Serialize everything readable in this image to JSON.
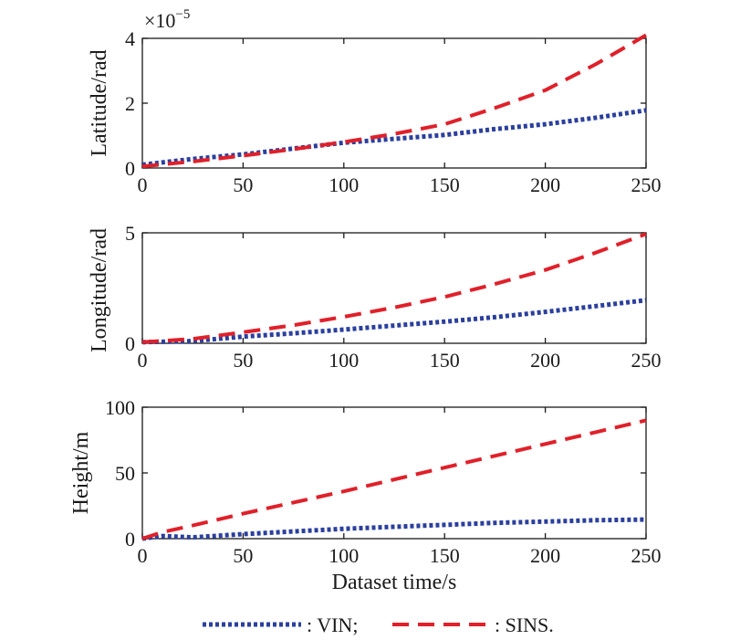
{
  "chart_data": [
    {
      "type": "line",
      "ylabel": "Latitude/rad",
      "exponent_base": "×10",
      "exponent_power": "−5",
      "xlim": [
        0,
        250
      ],
      "ylim": [
        0,
        4
      ],
      "xticks": [
        "0",
        "50",
        "100",
        "150",
        "200",
        "250"
      ],
      "yticks": [
        "0",
        "2",
        "4"
      ],
      "x": [
        0,
        25,
        50,
        75,
        100,
        125,
        150,
        175,
        200,
        225,
        250
      ],
      "series": [
        {
          "name": "VIN",
          "values": [
            0.1,
            0.28,
            0.42,
            0.6,
            0.78,
            0.9,
            1.02,
            1.2,
            1.35,
            1.55,
            1.78
          ]
        },
        {
          "name": "SINS",
          "values": [
            0.05,
            0.2,
            0.38,
            0.58,
            0.8,
            1.05,
            1.35,
            1.85,
            2.4,
            3.2,
            4.1
          ]
        }
      ]
    },
    {
      "type": "line",
      "ylabel": "Longitude/rad",
      "xlim": [
        0,
        250
      ],
      "ylim": [
        0,
        5
      ],
      "xticks": [
        "0",
        "50",
        "100",
        "150",
        "200",
        "250"
      ],
      "yticks": [
        "0",
        "5"
      ],
      "x": [
        0,
        25,
        50,
        75,
        100,
        125,
        150,
        175,
        200,
        225,
        250
      ],
      "series": [
        {
          "name": "VIN",
          "values": [
            0.05,
            0.1,
            0.3,
            0.45,
            0.62,
            0.8,
            0.98,
            1.18,
            1.42,
            1.68,
            1.95
          ]
        },
        {
          "name": "SINS",
          "values": [
            0.05,
            0.2,
            0.5,
            0.82,
            1.2,
            1.62,
            2.1,
            2.68,
            3.32,
            4.1,
            4.95
          ]
        }
      ]
    },
    {
      "type": "line",
      "ylabel": "Height/m",
      "xlabel": "Dataset time/s",
      "xlim": [
        0,
        250
      ],
      "ylim": [
        0,
        100
      ],
      "xticks": [
        "0",
        "50",
        "100",
        "150",
        "200",
        "250"
      ],
      "yticks": [
        "0",
        "50",
        "100"
      ],
      "x": [
        0,
        10,
        25,
        50,
        75,
        100,
        125,
        150,
        175,
        200,
        225,
        250
      ],
      "series": [
        {
          "name": "VIN",
          "values": [
            0,
            2,
            1,
            3.5,
            5.5,
            7.5,
            9,
            10.5,
            12,
            13,
            14,
            14.5
          ]
        },
        {
          "name": "SINS",
          "values": [
            0,
            5,
            10,
            19,
            27.5,
            36,
            45,
            54,
            63,
            72,
            81,
            90
          ]
        }
      ]
    }
  ],
  "legend": {
    "items": [
      {
        "label": ": VIN;",
        "color": "#2a3f9e",
        "style": "dotted"
      },
      {
        "label": ": SINS.",
        "color": "#e0202a",
        "style": "dashed"
      }
    ]
  },
  "colors": {
    "VIN": "#2a3f9e",
    "SINS": "#e0202a"
  }
}
